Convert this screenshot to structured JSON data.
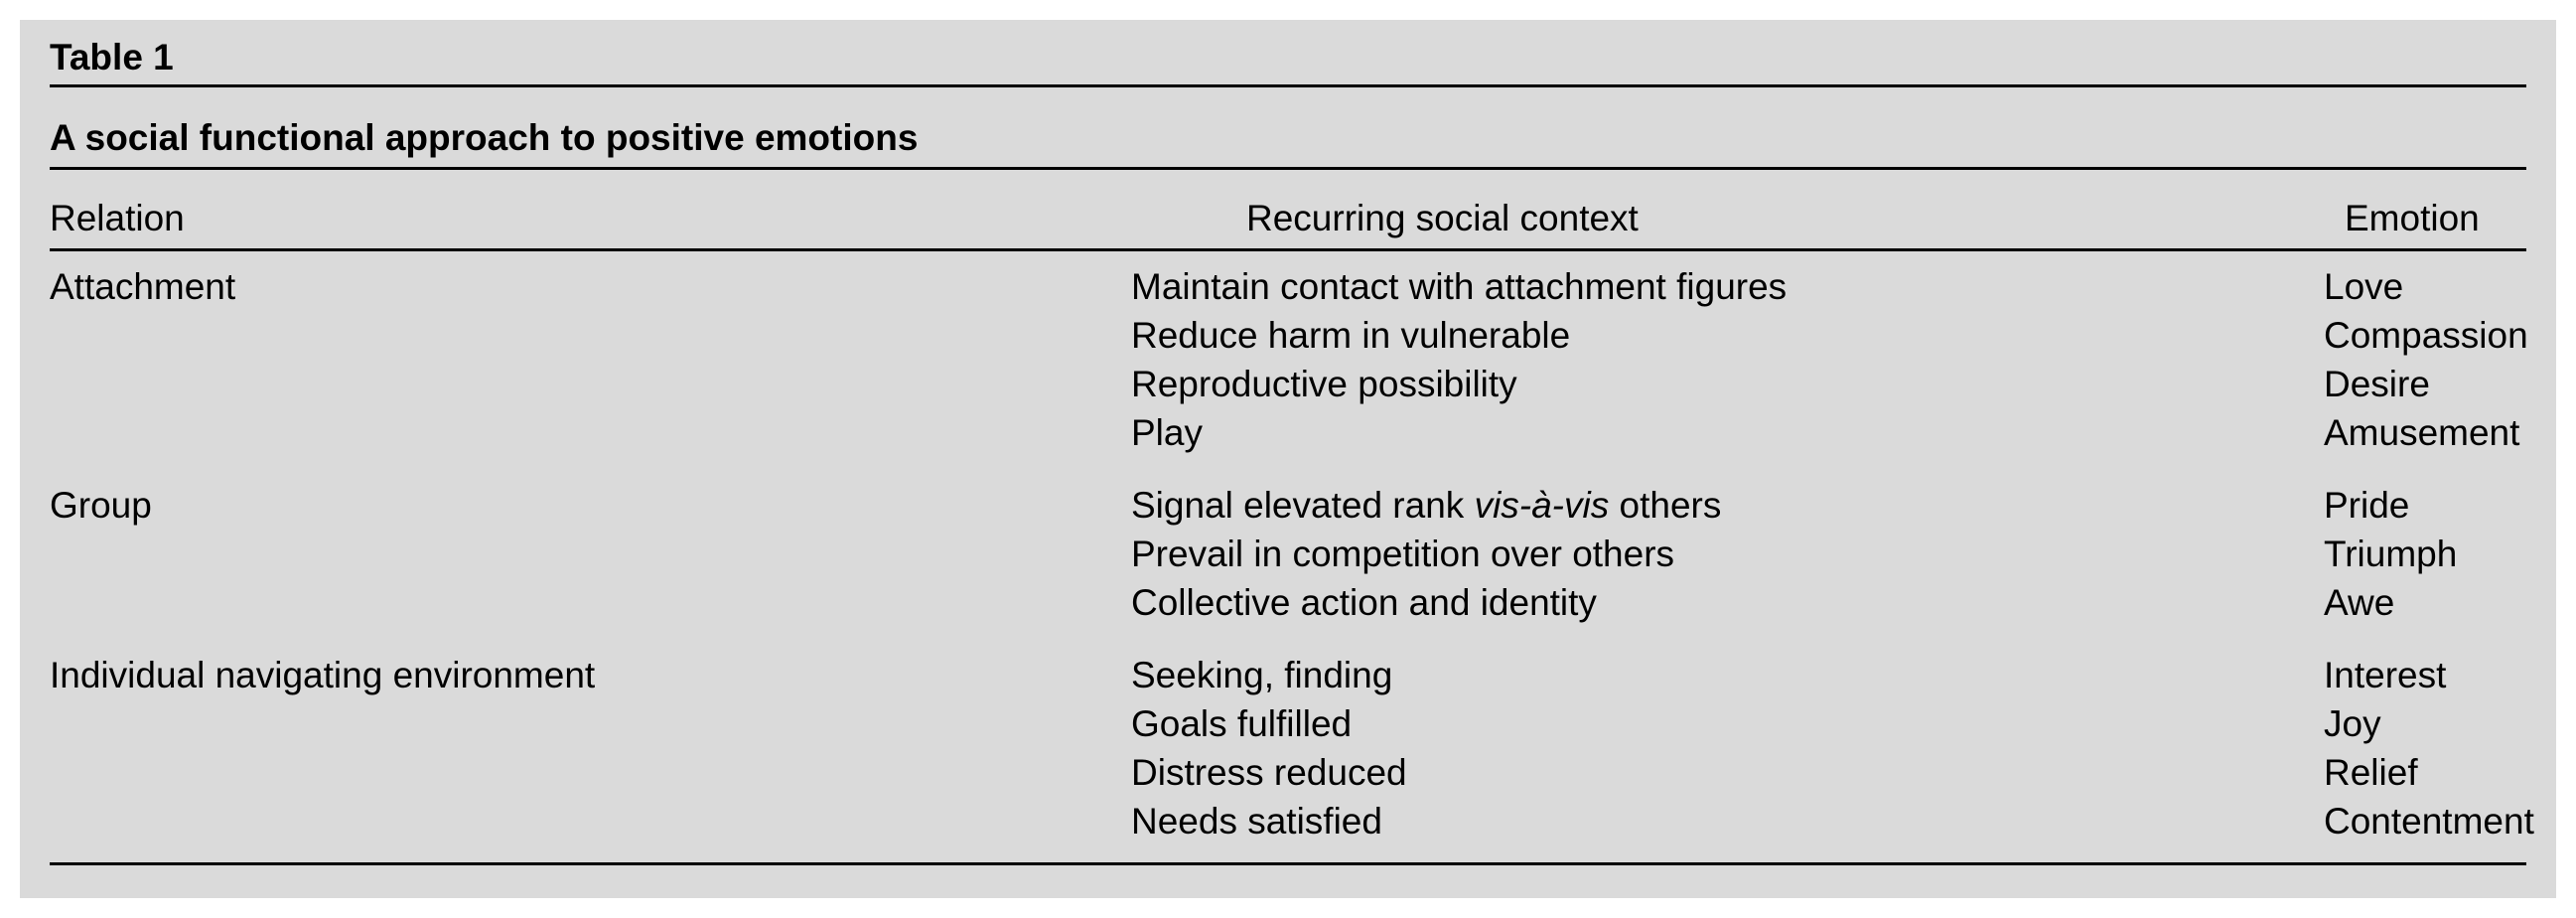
{
  "table_label": "Table 1",
  "caption": "A social functional approach to positive emotions",
  "headers": {
    "relation": "Relation",
    "context": "Recurring social context",
    "emotion": "Emotion"
  },
  "groups": [
    {
      "relation": "Attachment",
      "rows": [
        {
          "context": "Maintain contact with attachment figures",
          "emotion": "Love"
        },
        {
          "context": "Reduce harm in vulnerable",
          "emotion": "Compassion"
        },
        {
          "context": "Reproductive possibility",
          "emotion": "Desire"
        },
        {
          "context": "Play",
          "emotion": "Amusement"
        }
      ]
    },
    {
      "relation": "Group",
      "rows": [
        {
          "context_pre": "Signal elevated rank ",
          "context_italic": "vis-à-vis",
          "context_post": " others",
          "emotion": "Pride"
        },
        {
          "context": "Prevail in competition over others",
          "emotion": "Triumph"
        },
        {
          "context": "Collective action and identity",
          "emotion": "Awe"
        }
      ]
    },
    {
      "relation": "Individual navigating environment",
      "rows": [
        {
          "context": "Seeking, finding",
          "emotion": "Interest"
        },
        {
          "context": "Goals fulfilled",
          "emotion": "Joy"
        },
        {
          "context": "Distress reduced",
          "emotion": "Relief"
        },
        {
          "context": "Needs satisfied",
          "emotion": "Contentment"
        }
      ]
    }
  ]
}
